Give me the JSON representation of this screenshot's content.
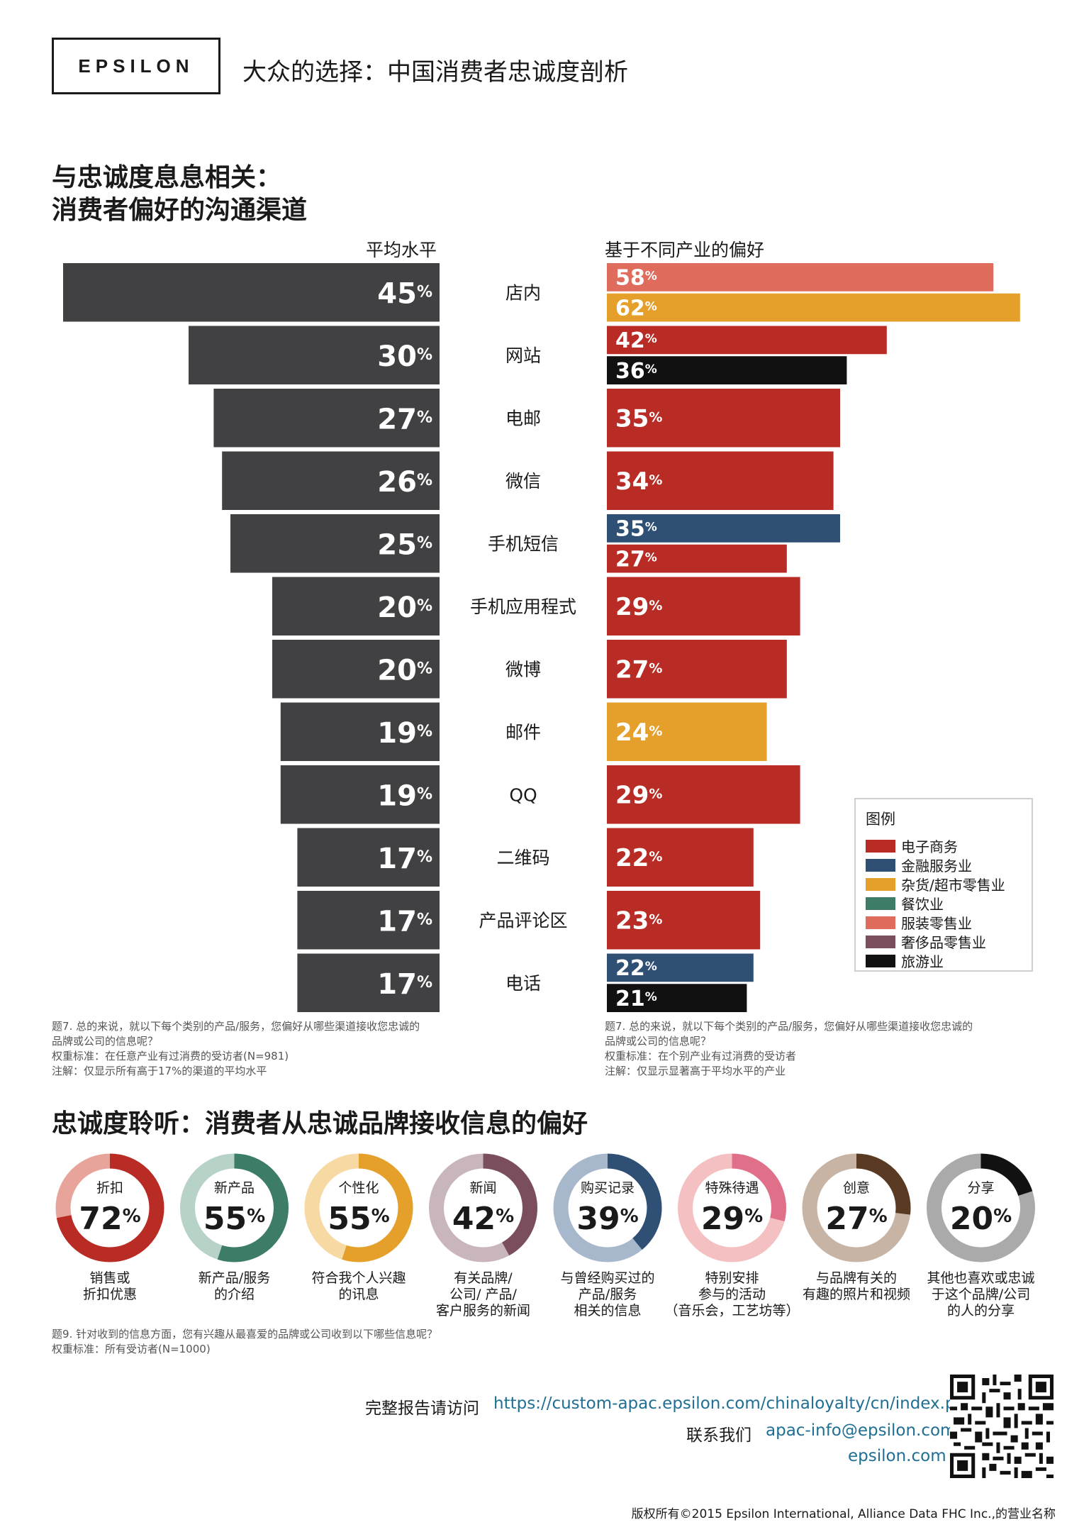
{
  "header": {
    "logo": "EPSILON",
    "title": "大众的选择：中国消费者忠诚度剖析"
  },
  "section1": {
    "title_line1": "与忠诚度息息相关：",
    "title_line2": "消费者偏好的沟通渠道"
  },
  "section2": {
    "title": "忠诚度聆听：消费者从忠诚品牌接收信息的偏好"
  },
  "legend": {
    "title": "图例",
    "items": [
      {
        "label": "电子商务",
        "color": "#b82c25"
      },
      {
        "label": "金融服务业",
        "color": "#2f4f75"
      },
      {
        "label": "杂货/超市零售业",
        "color": "#e5a02c"
      },
      {
        "label": "餐饮业",
        "color": "#3d7c66"
      },
      {
        "label": "服装零售业",
        "color": "#df6c5d"
      },
      {
        "label": "奢侈品零售业",
        "color": "#7a4e5c"
      },
      {
        "label": "旅游业",
        "color": "#111111"
      }
    ]
  },
  "chart_data": [
    {
      "type": "bar",
      "title": "平均水平",
      "categories": [
        "店内",
        "网站",
        "电邮",
        "微信",
        "手机短信",
        "手机应用程式",
        "微博",
        "邮件",
        "QQ",
        "二维码",
        "产品评论区",
        "电话"
      ],
      "values": [
        45,
        30,
        27,
        26,
        25,
        20,
        20,
        19,
        19,
        17,
        17,
        17
      ],
      "unit": "%"
    },
    {
      "type": "bar",
      "title": "基于不同产业的偏好",
      "categories": [
        "店内",
        "网站",
        "电邮",
        "微信",
        "手机短信",
        "手机应用程式",
        "微博",
        "邮件",
        "QQ",
        "二维码",
        "产品评论区",
        "电话"
      ],
      "bars": [
        [
          {
            "value": 58,
            "industry": "服装零售业"
          },
          {
            "value": 62,
            "industry": "杂货/超市零售业"
          }
        ],
        [
          {
            "value": 42,
            "industry": "电子商务"
          },
          {
            "value": 36,
            "industry": "旅游业"
          }
        ],
        [
          {
            "value": 35,
            "industry": "电子商务"
          }
        ],
        [
          {
            "value": 34,
            "industry": "电子商务"
          }
        ],
        [
          {
            "value": 35,
            "industry": "金融服务业"
          },
          {
            "value": 27,
            "industry": "电子商务"
          }
        ],
        [
          {
            "value": 29,
            "industry": "电子商务"
          }
        ],
        [
          {
            "value": 27,
            "industry": "电子商务"
          }
        ],
        [
          {
            "value": 24,
            "industry": "杂货/超市零售业"
          }
        ],
        [
          {
            "value": 29,
            "industry": "电子商务"
          }
        ],
        [
          {
            "value": 22,
            "industry": "电子商务"
          }
        ],
        [
          {
            "value": 23,
            "industry": "电子商务"
          }
        ],
        [
          {
            "value": 22,
            "industry": "金融服务业"
          },
          {
            "value": 21,
            "industry": "旅游业"
          }
        ]
      ],
      "unit": "%"
    },
    {
      "type": "pie",
      "items": [
        {
          "label": "折扣",
          "value": 72,
          "caption": [
            "销售或",
            "折扣优惠"
          ],
          "color": "#b82c25",
          "track": "#e8a39a"
        },
        {
          "label": "新产品",
          "value": 55,
          "caption": [
            "新产品/服务",
            "的介绍"
          ],
          "color": "#3d7c66",
          "track": "#b7d3c8"
        },
        {
          "label": "个性化",
          "value": 55,
          "caption": [
            "符合我个人兴趣",
            "的讯息"
          ],
          "color": "#e5a02c",
          "track": "#f7d9a4"
        },
        {
          "label": "新闻",
          "value": 42,
          "caption": [
            "有关品牌/",
            "公司/ 产品/",
            "客户服务的新闻"
          ],
          "color": "#7a4e5c",
          "track": "#c9b6bd"
        },
        {
          "label": "购买记录",
          "value": 39,
          "caption": [
            "与曾经购买过的",
            "产品/服务",
            "相关的信息"
          ],
          "color": "#2f4f75",
          "track": "#a8b8cc"
        },
        {
          "label": "特殊待遇",
          "value": 29,
          "caption": [
            "特别安排",
            "参与的活动",
            "（音乐会，工艺坊等）"
          ],
          "color": "#e0708a",
          "track": "#f4c0c1"
        },
        {
          "label": "创意",
          "value": 27,
          "caption": [
            "与品牌有关的",
            "有趣的照片和视频"
          ],
          "color": "#5a3a22",
          "track": "#c7b4a4"
        },
        {
          "label": "分享",
          "value": 20,
          "caption": [
            "其他也喜欢或忠诚",
            "于这个品牌/公司",
            "的人的分享"
          ],
          "color": "#111111",
          "track": "#aaaaaa"
        }
      ],
      "unit": "%"
    }
  ],
  "notes": {
    "left": [
      "题7. 总的来说，就以下每个类别的产品/服务，您偏好从哪些渠道接收您忠诚的",
      "品牌或公司的信息呢？",
      "权重标准：在任意产业有过消费的受访者(N=981)",
      "注解：仅显示所有高于17%的渠道的平均水平"
    ],
    "right": [
      "题7. 总的来说，就以下每个类别的产品/服务，您偏好从哪些渠道接收您忠诚的",
      "品牌或公司的信息呢？",
      "权重标准：在个别产业有过消费的受访者",
      "注解：仅显示显著高于平均水平的产业"
    ],
    "bottom": [
      "题9. 针对收到的信息方面，您有兴趣从最喜爱的品牌或公司收到以下哪些信息呢？",
      "权重标准：所有受访者(N=1000)"
    ]
  },
  "footer": {
    "report_label": "完整报告请访问",
    "report_url": "https://custom-apac.epsilon.com/chinaloyalty/cn/index.php",
    "contact_label": "联系我们",
    "email": "apac-info@epsilon.com",
    "site": "epsilon.com",
    "copyright": "版权所有©2015 Epsilon International, Alliance Data FHC Inc.,的营业名称"
  }
}
